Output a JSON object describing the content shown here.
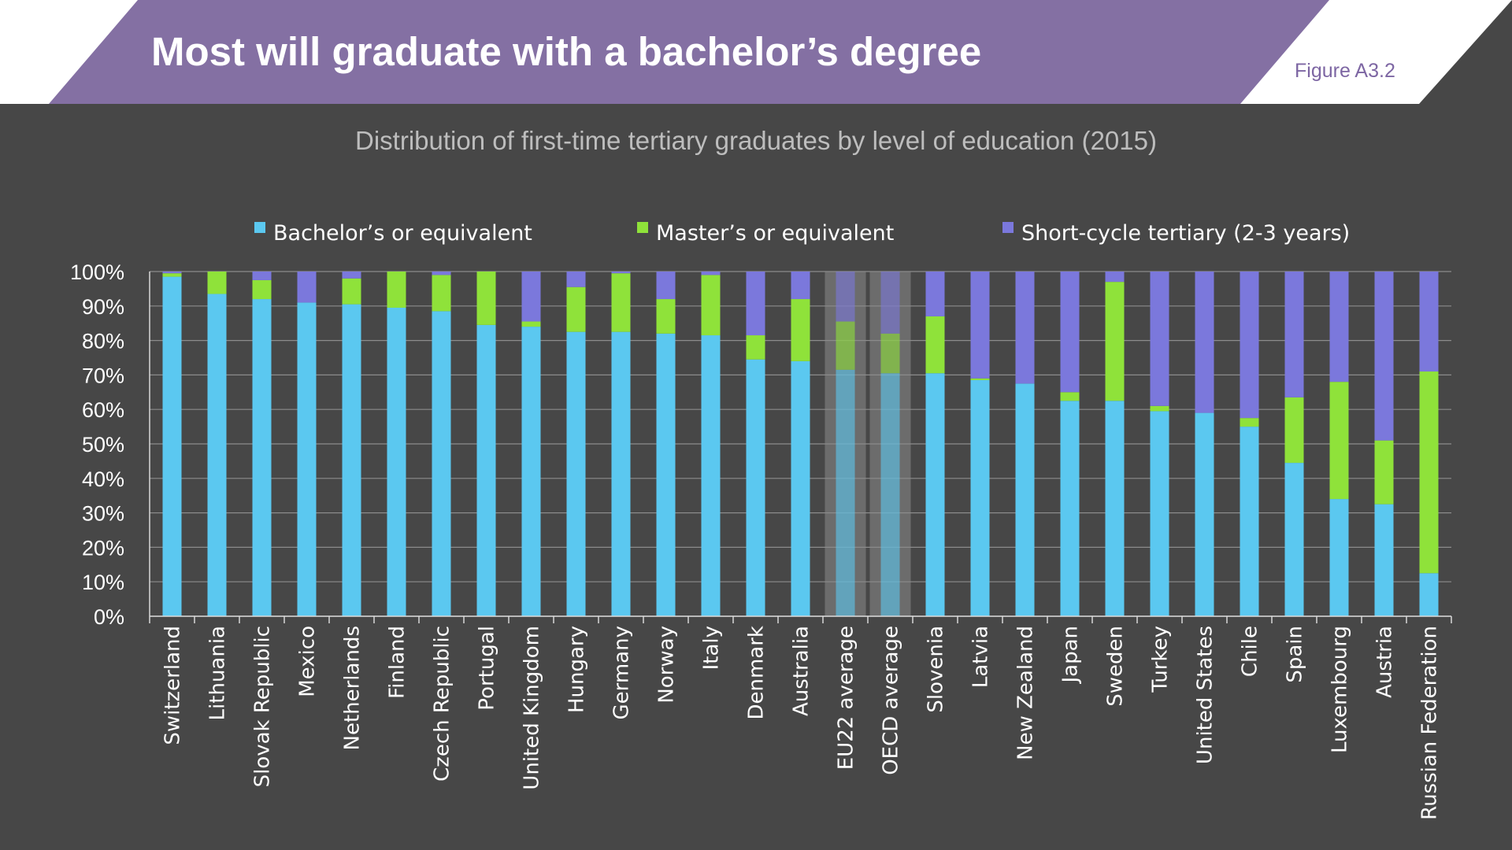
{
  "header": {
    "title": "Most will graduate with a bachelor’s degree",
    "figure_label": "Figure A3.2",
    "band_color": "#8470a3"
  },
  "colors": {
    "bachelor": "#5bc8f0",
    "master": "#8fe23a",
    "short_cycle": "#7b78dc",
    "background": "#474747",
    "highlight": "#8a8a8a"
  },
  "chart_data": {
    "type": "bar",
    "stacked": true,
    "title": "Distribution of first-time tertiary graduates by level of education (2015)",
    "xlabel": "",
    "ylabel": "",
    "ylim": [
      0,
      100
    ],
    "y_ticks": [
      "0%",
      "10%",
      "20%",
      "30%",
      "40%",
      "50%",
      "60%",
      "70%",
      "80%",
      "90%",
      "100%"
    ],
    "grid": true,
    "legend_position": "top",
    "categories": [
      "Switzerland",
      "Lithuania",
      "Slovak Republic",
      "Mexico",
      "Netherlands",
      "Finland",
      "Czech Republic",
      "Portugal",
      "United Kingdom",
      "Hungary",
      "Germany",
      "Norway",
      "Italy",
      "Denmark",
      "Australia",
      "EU22 average",
      "OECD average",
      "Slovenia",
      "Latvia",
      "New Zealand",
      "Japan",
      "Sweden",
      "Turkey",
      "United States",
      "Chile",
      "Spain",
      "Luxembourg",
      "Austria",
      "Russian Federation"
    ],
    "highlighted": [
      "EU22 average",
      "OECD average"
    ],
    "series": [
      {
        "name": "Bachelor’s or equivalent",
        "color": "#5bc8f0",
        "values": [
          98.5,
          93.5,
          92,
          91,
          90.5,
          89.5,
          88.5,
          84.5,
          84,
          82.5,
          82.5,
          82,
          81.5,
          74.5,
          74,
          71.5,
          70.5,
          70.5,
          68.5,
          67.5,
          62.5,
          62.5,
          59.5,
          59,
          55,
          44.5,
          34,
          32.5,
          12.5
        ]
      },
      {
        "name": "Master’s or equivalent",
        "color": "#8fe23a",
        "values": [
          1,
          6.5,
          5.5,
          0,
          7.5,
          10.5,
          10.5,
          15.5,
          1.5,
          13,
          17,
          10,
          17.5,
          7,
          18,
          14,
          11.5,
          16.5,
          0.5,
          0,
          2.5,
          34.5,
          1.5,
          0,
          2.5,
          19,
          34,
          18.5,
          58.5
        ]
      },
      {
        "name": "Short-cycle tertiary (2-3 years)",
        "color": "#7b78dc",
        "values": [
          0.5,
          0,
          2.5,
          9,
          2,
          0,
          1,
          0,
          14.5,
          4.5,
          0.5,
          8,
          1,
          18.5,
          8,
          14.5,
          18,
          13,
          31,
          32.5,
          35,
          3,
          39,
          41,
          42.5,
          36.5,
          32,
          49,
          29
        ]
      }
    ]
  }
}
